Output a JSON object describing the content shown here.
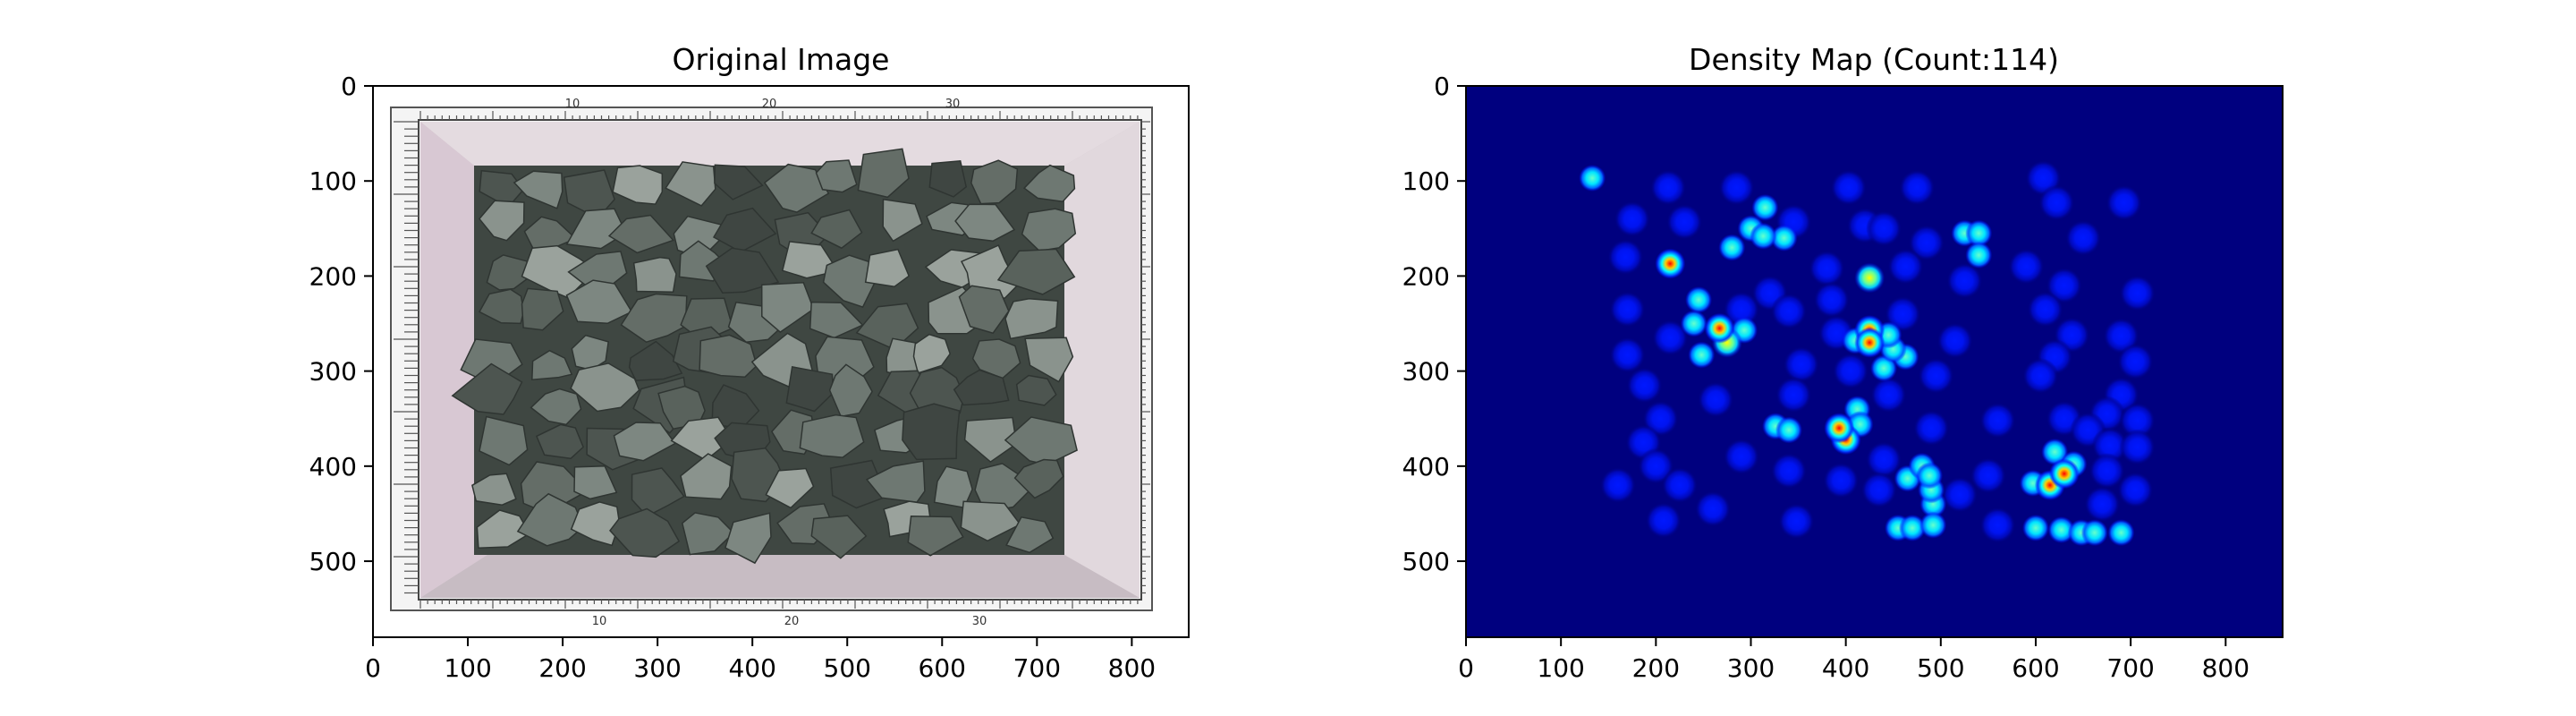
{
  "chart_data": [
    {
      "type": "image",
      "title": "Original Image",
      "xlim": [
        0,
        860
      ],
      "ylim": [
        580,
        0
      ],
      "xticks": [
        0,
        100,
        200,
        300,
        400,
        500,
        600,
        700,
        800
      ],
      "yticks": [
        0,
        100,
        200,
        300,
        400,
        500
      ],
      "xtick_labels": [
        "0",
        "100",
        "200",
        "300",
        "400",
        "500",
        "600",
        "700",
        "800"
      ],
      "ytick_labels": [
        "0",
        "100",
        "200",
        "300",
        "400",
        "500"
      ],
      "ruler_labels": [
        "10",
        "20",
        "30"
      ],
      "colors": {
        "background": "#ffffff",
        "tray": "#d9cfd6",
        "tray_edge": "#b9a9b6",
        "rock": "#5f6a63",
        "rock_light": "#9aa39d"
      }
    },
    {
      "type": "heatmap",
      "title": "Density Map (Count:114)",
      "xlim": [
        0,
        860
      ],
      "ylim": [
        580,
        0
      ],
      "xticks": [
        0,
        100,
        200,
        300,
        400,
        500,
        600,
        700,
        800
      ],
      "yticks": [
        0,
        100,
        200,
        300,
        400,
        500
      ],
      "xtick_labels": [
        "0",
        "100",
        "200",
        "300",
        "400",
        "500",
        "600",
        "700",
        "800"
      ],
      "ytick_labels": [
        "0",
        "100",
        "200",
        "300",
        "400",
        "500"
      ],
      "count": 114,
      "colormap": "jet",
      "colors": {
        "background": "#00007f",
        "low": "#0000c8",
        "mid": "#00ffff",
        "peak_yellow": "#ffff00",
        "peak_red": "#ff0000"
      },
      "points": [
        [
          133,
          97,
          0.55
        ],
        [
          608,
          97,
          0.3
        ],
        [
          213,
          107,
          0.3
        ],
        [
          285,
          107,
          0.3
        ],
        [
          403,
          107,
          0.3
        ],
        [
          475,
          107,
          0.3
        ],
        [
          622,
          123,
          0.3
        ],
        [
          693,
          123,
          0.3
        ],
        [
          315,
          128,
          0.45
        ],
        [
          175,
          140,
          0.3
        ],
        [
          230,
          143,
          0.3
        ],
        [
          300,
          150,
          0.5
        ],
        [
          345,
          143,
          0.3
        ],
        [
          420,
          147,
          0.3
        ],
        [
          440,
          150,
          0.3
        ],
        [
          525,
          155,
          0.5
        ],
        [
          540,
          155,
          0.55
        ],
        [
          335,
          160,
          0.55
        ],
        [
          313,
          158,
          0.55
        ],
        [
          485,
          165,
          0.3
        ],
        [
          650,
          160,
          0.3
        ],
        [
          168,
          180,
          0.3
        ],
        [
          215,
          187,
          0.8
        ],
        [
          280,
          170,
          0.45
        ],
        [
          540,
          178,
          0.55
        ],
        [
          380,
          192,
          0.3
        ],
        [
          425,
          202,
          0.65
        ],
        [
          463,
          190,
          0.3
        ],
        [
          590,
          190,
          0.3
        ],
        [
          630,
          210,
          0.3
        ],
        [
          707,
          218,
          0.3
        ],
        [
          320,
          218,
          0.3
        ],
        [
          525,
          205,
          0.3
        ],
        [
          245,
          225,
          0.4
        ],
        [
          385,
          225,
          0.3
        ],
        [
          170,
          235,
          0.3
        ],
        [
          610,
          235,
          0.3
        ],
        [
          290,
          235,
          0.3
        ],
        [
          340,
          237,
          0.3
        ],
        [
          460,
          240,
          0.3
        ],
        [
          240,
          250,
          0.5
        ],
        [
          267,
          255,
          0.9
        ],
        [
          275,
          270,
          0.7
        ],
        [
          293,
          257,
          0.5
        ],
        [
          425,
          257,
          0.75
        ],
        [
          425,
          270,
          0.8
        ],
        [
          410,
          268,
          0.5
        ],
        [
          445,
          262,
          0.55
        ],
        [
          450,
          277,
          0.5
        ],
        [
          463,
          285,
          0.45
        ],
        [
          440,
          297,
          0.45
        ],
        [
          215,
          265,
          0.3
        ],
        [
          390,
          260,
          0.3
        ],
        [
          515,
          268,
          0.3
        ],
        [
          638,
          262,
          0.3
        ],
        [
          690,
          263,
          0.3
        ],
        [
          248,
          283,
          0.4
        ],
        [
          170,
          283,
          0.3
        ],
        [
          620,
          285,
          0.3
        ],
        [
          705,
          290,
          0.3
        ],
        [
          353,
          293,
          0.3
        ],
        [
          405,
          300,
          0.3
        ],
        [
          495,
          305,
          0.3
        ],
        [
          605,
          305,
          0.3
        ],
        [
          188,
          315,
          0.3
        ],
        [
          690,
          325,
          0.3
        ],
        [
          263,
          330,
          0.3
        ],
        [
          345,
          325,
          0.3
        ],
        [
          445,
          325,
          0.3
        ],
        [
          412,
          340,
          0.5
        ],
        [
          675,
          345,
          0.3
        ],
        [
          630,
          350,
          0.3
        ],
        [
          205,
          350,
          0.3
        ],
        [
          560,
          352,
          0.3
        ],
        [
          707,
          352,
          0.3
        ],
        [
          326,
          358,
          0.45
        ],
        [
          340,
          362,
          0.45
        ],
        [
          393,
          360,
          0.8
        ],
        [
          400,
          372,
          0.75
        ],
        [
          415,
          356,
          0.55
        ],
        [
          490,
          360,
          0.3
        ],
        [
          655,
          362,
          0.3
        ],
        [
          187,
          375,
          0.3
        ],
        [
          678,
          378,
          0.3
        ],
        [
          707,
          380,
          0.3
        ],
        [
          620,
          385,
          0.55
        ],
        [
          290,
          390,
          0.3
        ],
        [
          440,
          393,
          0.3
        ],
        [
          640,
          398,
          0.55
        ],
        [
          630,
          408,
          0.85
        ],
        [
          615,
          420,
          0.8
        ],
        [
          200,
          400,
          0.3
        ],
        [
          480,
          400,
          0.5
        ],
        [
          488,
          410,
          0.5
        ],
        [
          675,
          405,
          0.3
        ],
        [
          465,
          413,
          0.45
        ],
        [
          340,
          405,
          0.3
        ],
        [
          395,
          415,
          0.3
        ],
        [
          550,
          410,
          0.3
        ],
        [
          597,
          418,
          0.45
        ],
        [
          160,
          420,
          0.3
        ],
        [
          225,
          420,
          0.3
        ],
        [
          435,
          425,
          0.3
        ],
        [
          490,
          425,
          0.45
        ],
        [
          520,
          430,
          0.3
        ],
        [
          705,
          425,
          0.3
        ],
        [
          670,
          440,
          0.3
        ],
        [
          492,
          440,
          0.4
        ],
        [
          260,
          445,
          0.3
        ],
        [
          348,
          458,
          0.3
        ],
        [
          208,
          457,
          0.3
        ],
        [
          560,
          462,
          0.3
        ],
        [
          455,
          465,
          0.4
        ],
        [
          470,
          465,
          0.4
        ],
        [
          492,
          462,
          0.4
        ],
        [
          600,
          465,
          0.4
        ],
        [
          627,
          467,
          0.4
        ],
        [
          648,
          470,
          0.4
        ],
        [
          662,
          470,
          0.4
        ],
        [
          690,
          470,
          0.4
        ]
      ]
    }
  ]
}
